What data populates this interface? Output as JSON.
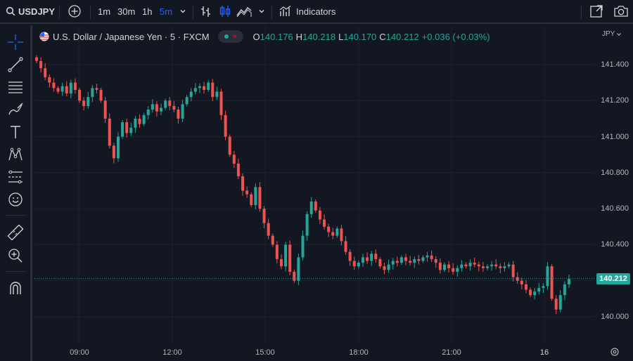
{
  "toolbar": {
    "symbol": "USDJPY",
    "intervals": [
      "1m",
      "30m",
      "1h",
      "5m"
    ],
    "active_interval": "5m",
    "indicators_label": "Indicators"
  },
  "legend": {
    "title": "U.S. Dollar / Japanese Yen · 5 · FXCM",
    "o_label": "O",
    "o_value": "140.176",
    "h_label": "H",
    "h_value": "140.218",
    "l_label": "L",
    "l_value": "140.170",
    "c_label": "C",
    "c_value": "140.212",
    "change": "+0.036 (+0.03%)"
  },
  "price_scale": {
    "currency": "JPY",
    "labels": [
      "141.400",
      "141.200",
      "141.000",
      "140.800",
      "140.600",
      "140.400",
      "140.000"
    ],
    "current_price": "140.212"
  },
  "time_scale": {
    "labels": [
      "09:00",
      "12:00",
      "15:00",
      "18:00",
      "21:00",
      "16"
    ]
  },
  "colors": {
    "up": "#26a69a",
    "down": "#ef5350",
    "accent": "#2962ff",
    "background": "#131722"
  },
  "chart_data": {
    "type": "candlestick",
    "symbol": "USDJPY",
    "timeframe": "5",
    "series": [
      {
        "name": "USDJPY",
        "values": [
          141.42,
          141.38,
          141.33,
          141.3,
          141.27,
          141.25,
          141.28,
          141.24,
          141.3,
          141.26,
          141.2,
          141.17,
          141.22,
          141.27,
          141.26,
          141.2,
          141.1,
          140.95,
          140.88,
          141.0,
          141.08,
          141.02,
          141.05,
          141.1,
          141.07,
          141.12,
          141.15,
          141.18,
          141.14,
          141.16,
          141.2,
          141.17,
          141.15,
          141.1,
          141.18,
          141.22,
          141.25,
          141.27,
          141.28,
          141.26,
          141.3,
          141.22,
          141.25,
          141.12,
          141.0,
          140.9,
          140.85,
          140.78,
          140.7,
          140.68,
          140.62,
          140.72,
          140.6,
          140.52,
          140.45,
          140.4,
          140.32,
          140.28,
          140.4,
          140.25,
          140.2,
          140.33,
          140.45,
          140.57,
          140.64,
          140.59,
          140.54,
          140.5,
          140.47,
          140.45,
          140.49,
          140.42,
          140.36,
          140.31,
          140.28,
          140.3,
          140.33,
          140.31,
          140.35,
          140.32,
          140.28,
          140.26,
          140.29,
          140.31,
          140.3,
          140.33,
          140.31,
          140.3,
          140.32,
          140.31,
          140.33,
          140.34,
          140.32,
          140.3,
          140.26,
          140.29,
          140.27,
          140.25,
          140.27,
          140.29,
          140.28,
          140.3,
          140.29,
          140.28,
          140.27,
          140.28,
          140.29,
          140.28,
          140.27,
          140.28,
          140.29,
          140.22,
          140.2,
          140.18,
          140.15,
          140.12,
          140.14,
          140.16,
          140.17,
          140.28,
          140.1,
          140.04,
          140.12,
          140.18,
          140.21
        ]
      }
    ],
    "ylim": [
      139.96,
      141.46
    ],
    "y_ticks": [
      141.4,
      141.2,
      141.0,
      140.8,
      140.6,
      140.4,
      140.0
    ],
    "last_price": 140.212
  }
}
